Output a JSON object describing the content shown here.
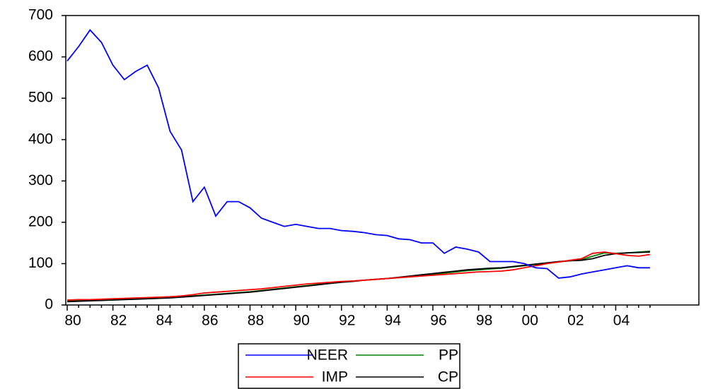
{
  "chart_data": {
    "type": "line",
    "categories": [
      "80",
      null,
      null,
      null,
      "82",
      null,
      null,
      null,
      "84",
      null,
      null,
      null,
      "86",
      null,
      null,
      null,
      "88",
      null,
      null,
      null,
      "90",
      null,
      null,
      null,
      "92",
      null,
      null,
      null,
      "94",
      null,
      null,
      null,
      "96",
      null,
      null,
      null,
      "98",
      null,
      null,
      null,
      "00",
      null,
      null,
      null,
      "02",
      null,
      null,
      null,
      "04",
      null,
      null,
      null
    ],
    "series": [
      {
        "name": "NEER",
        "color": "#0000ff",
        "values": [
          590,
          625,
          665,
          635,
          580,
          545,
          565,
          580,
          525,
          420,
          375,
          250,
          285,
          215,
          250,
          250,
          235,
          210,
          200,
          190,
          195,
          190,
          185,
          185,
          180,
          178,
          175,
          170,
          168,
          160,
          158,
          150,
          150,
          125,
          140,
          135,
          128,
          105,
          105,
          105,
          100,
          90,
          88,
          65,
          68,
          75,
          80,
          85,
          90,
          95,
          90,
          90
        ]
      },
      {
        "name": "IMP",
        "color": "#ff0000",
        "values": [
          12,
          13,
          13,
          14,
          15,
          16,
          17,
          18,
          19,
          20,
          22,
          25,
          29,
          31,
          33,
          35,
          37,
          39,
          42,
          45,
          48,
          51,
          53,
          55,
          57,
          58,
          60,
          62,
          64,
          66,
          68,
          70,
          72,
          74,
          76,
          78,
          80,
          81,
          82,
          85,
          90,
          95,
          100,
          104,
          108,
          112,
          125,
          128,
          124,
          120,
          118,
          122
        ]
      },
      {
        "name": "PP",
        "color": "#008000",
        "values": [
          10,
          11,
          12,
          12,
          13,
          14,
          15,
          16,
          17,
          18,
          20,
          22,
          24,
          26,
          28,
          30,
          32,
          35,
          38,
          41,
          44,
          47,
          50,
          53,
          56,
          58,
          60,
          62,
          64,
          66,
          69,
          72,
          74,
          77,
          80,
          83,
          85,
          87,
          89,
          92,
          95,
          98,
          101,
          104,
          107,
          110,
          118,
          126,
          125,
          126,
          128,
          130
        ]
      },
      {
        "name": "CP",
        "color": "#000000",
        "values": [
          8,
          9,
          10,
          11,
          12,
          13,
          14,
          15,
          16,
          17,
          19,
          21,
          23,
          25,
          27,
          29,
          31,
          34,
          37,
          40,
          43,
          46,
          49,
          52,
          55,
          57,
          60,
          62,
          64,
          67,
          70,
          73,
          76,
          79,
          82,
          85,
          87,
          89,
          90,
          93,
          96,
          99,
          102,
          105,
          107,
          108,
          112,
          120,
          124,
          126,
          127,
          128
        ]
      }
    ],
    "ylim": [
      0,
      700
    ],
    "yticks": [
      0,
      100,
      200,
      300,
      400,
      500,
      600,
      700
    ]
  }
}
